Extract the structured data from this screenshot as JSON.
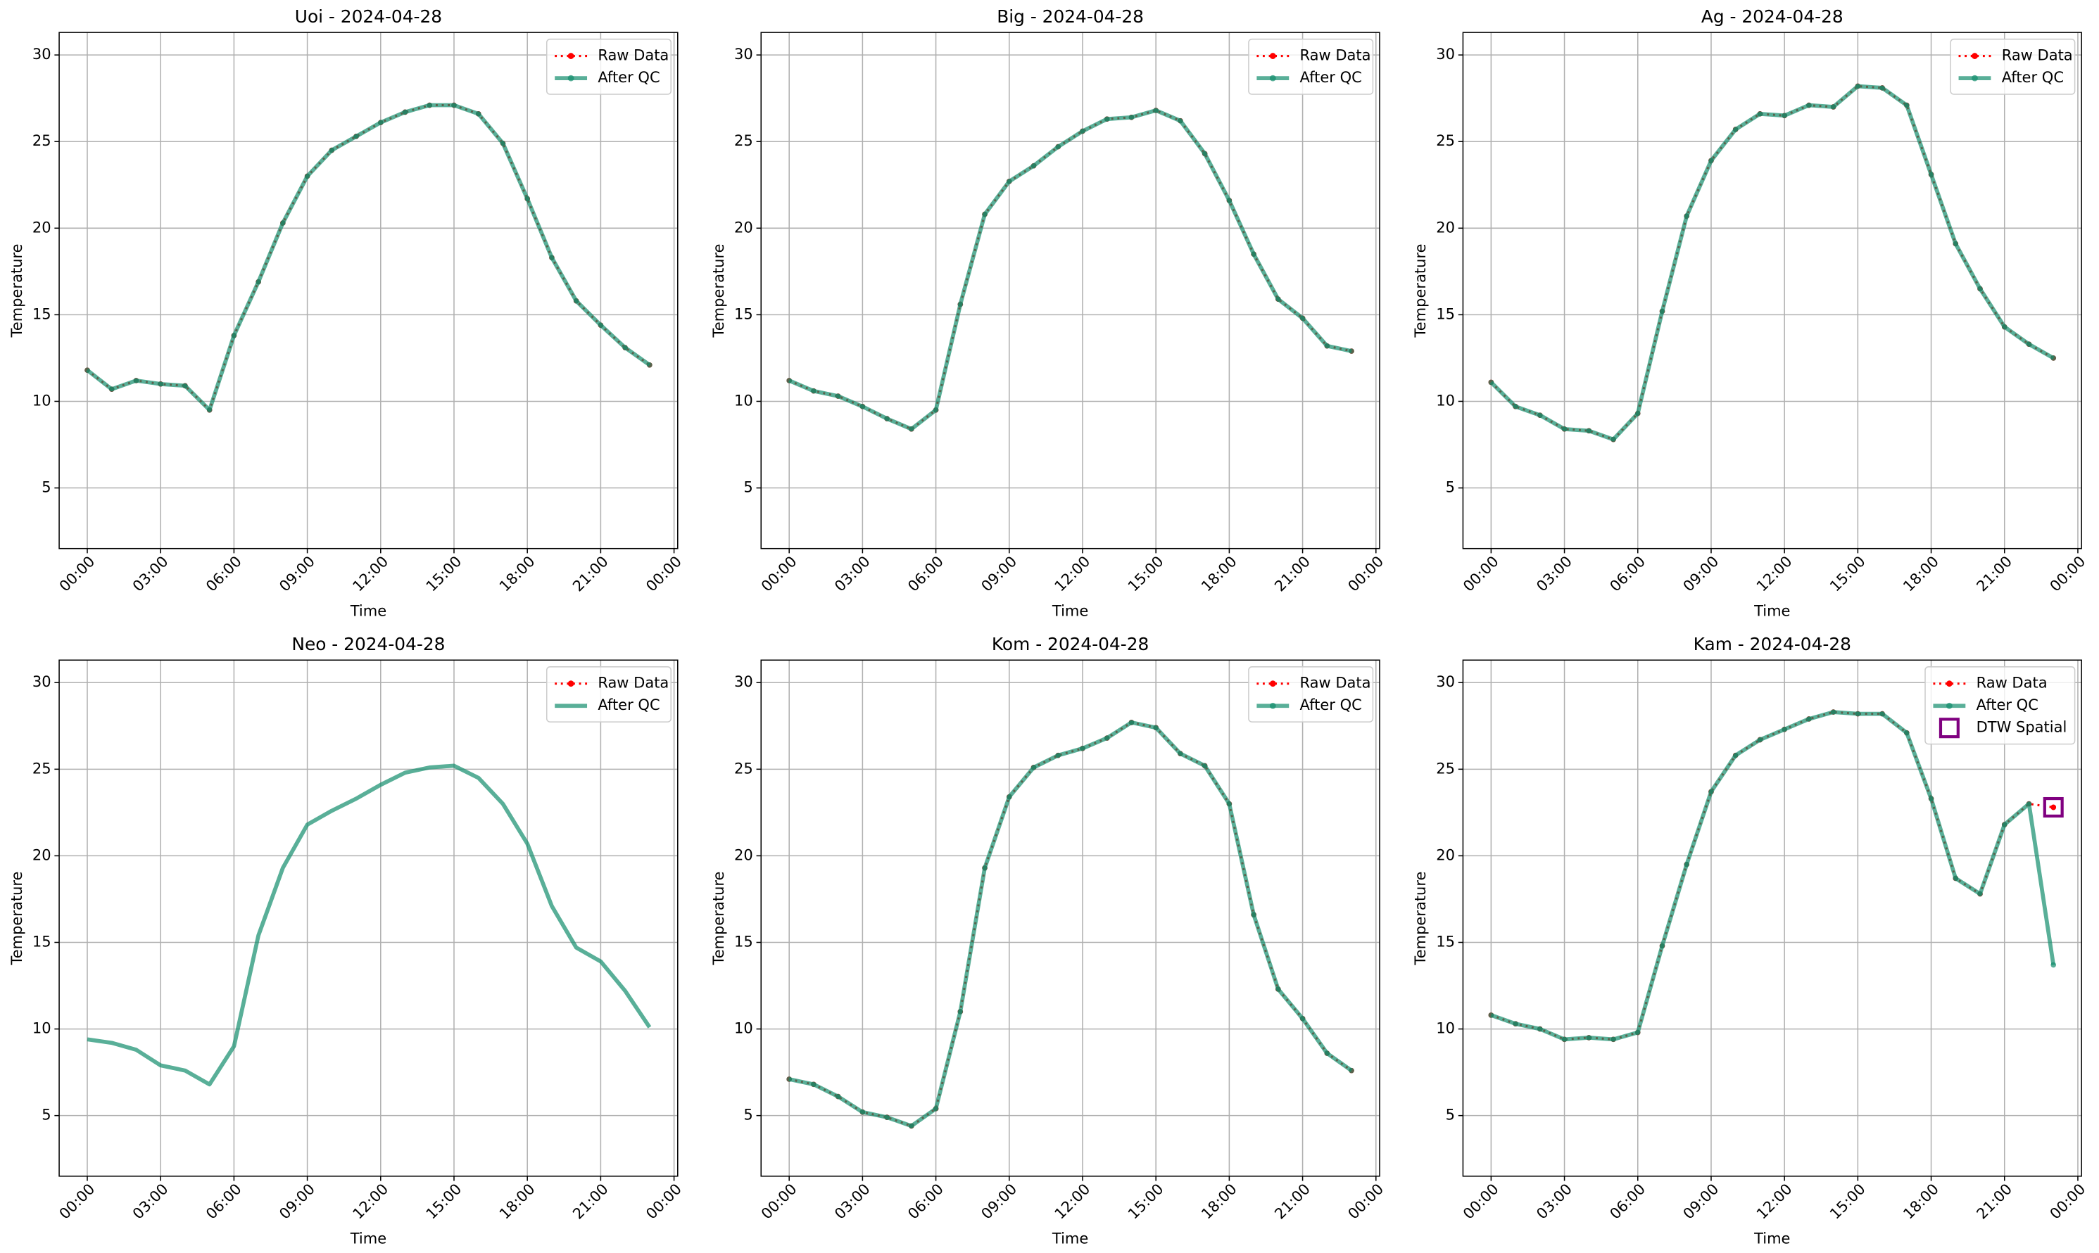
{
  "chart_data": [
    {
      "type": "line",
      "title": "Uoi - 2024-04-28",
      "xlabel": "Time",
      "ylabel": "Temperature",
      "x": [
        0,
        1,
        2,
        3,
        4,
        5,
        6,
        7,
        8,
        9,
        10,
        11,
        12,
        13,
        14,
        15,
        16,
        17,
        18,
        19,
        20,
        21,
        22,
        23
      ],
      "xlim": [
        -1.15,
        24.15
      ],
      "xticks": [
        {
          "value": 0,
          "label": "00:00"
        },
        {
          "value": 3,
          "label": "03:00"
        },
        {
          "value": 6,
          "label": "06:00"
        },
        {
          "value": 9,
          "label": "09:00"
        },
        {
          "value": 12,
          "label": "12:00"
        },
        {
          "value": 15,
          "label": "15:00"
        },
        {
          "value": 18,
          "label": "18:00"
        },
        {
          "value": 21,
          "label": "21:00"
        },
        {
          "value": 24,
          "label": "00:00"
        }
      ],
      "ylim": [
        1.5,
        31.3
      ],
      "yticks": [
        5,
        10,
        15,
        20,
        25,
        30
      ],
      "grid": true,
      "legend": "upper right",
      "series": [
        {
          "name": "Raw Data",
          "color": "#ff0000",
          "style": "dotted",
          "marker": "circle",
          "values": [
            11.8,
            10.7,
            11.2,
            11.0,
            10.9,
            9.5,
            13.8,
            16.9,
            20.3,
            23.0,
            24.5,
            25.3,
            26.1,
            26.7,
            27.1,
            27.1,
            26.6,
            24.9,
            21.7,
            18.3,
            15.8,
            14.4,
            13.1,
            12.1
          ]
        },
        {
          "name": "After QC",
          "color": "#138d6c",
          "alpha": 0.7,
          "style": "solid",
          "marker": "circle",
          "values": [
            11.8,
            10.7,
            11.2,
            11.0,
            10.9,
            9.5,
            13.8,
            16.9,
            20.3,
            23.0,
            24.5,
            25.3,
            26.1,
            26.7,
            27.1,
            27.1,
            26.6,
            24.9,
            21.7,
            18.3,
            15.8,
            14.4,
            13.1,
            12.1
          ]
        }
      ]
    },
    {
      "type": "line",
      "title": "Big - 2024-04-28",
      "xlabel": "Time",
      "ylabel": "Temperature",
      "x": [
        0,
        1,
        2,
        3,
        4,
        5,
        6,
        7,
        8,
        9,
        10,
        11,
        12,
        13,
        14,
        15,
        16,
        17,
        18,
        19,
        20,
        21,
        22,
        23
      ],
      "xlim": [
        -1.15,
        24.15
      ],
      "xticks": [
        {
          "value": 0,
          "label": "00:00"
        },
        {
          "value": 3,
          "label": "03:00"
        },
        {
          "value": 6,
          "label": "06:00"
        },
        {
          "value": 9,
          "label": "09:00"
        },
        {
          "value": 12,
          "label": "12:00"
        },
        {
          "value": 15,
          "label": "15:00"
        },
        {
          "value": 18,
          "label": "18:00"
        },
        {
          "value": 21,
          "label": "21:00"
        },
        {
          "value": 24,
          "label": "00:00"
        }
      ],
      "ylim": [
        1.5,
        31.3
      ],
      "yticks": [
        5,
        10,
        15,
        20,
        25,
        30
      ],
      "grid": true,
      "legend": "upper right",
      "series": [
        {
          "name": "Raw Data",
          "color": "#ff0000",
          "style": "dotted",
          "marker": "circle",
          "values": [
            11.2,
            10.6,
            10.3,
            9.7,
            9.0,
            8.4,
            9.5,
            15.6,
            20.8,
            22.7,
            23.6,
            24.7,
            25.6,
            26.3,
            26.4,
            26.8,
            26.2,
            24.3,
            21.6,
            18.5,
            15.9,
            14.8,
            13.2,
            12.9
          ]
        },
        {
          "name": "After QC",
          "color": "#138d6c",
          "alpha": 0.7,
          "style": "solid",
          "marker": "circle",
          "values": [
            11.2,
            10.6,
            10.3,
            9.7,
            9.0,
            8.4,
            9.5,
            15.6,
            20.8,
            22.7,
            23.6,
            24.7,
            25.6,
            26.3,
            26.4,
            26.8,
            26.2,
            24.3,
            21.6,
            18.5,
            15.9,
            14.8,
            13.2,
            12.9
          ]
        }
      ]
    },
    {
      "type": "line",
      "title": "Ag - 2024-04-28",
      "xlabel": "Time",
      "ylabel": "Temperature",
      "x": [
        0,
        1,
        2,
        3,
        4,
        5,
        6,
        7,
        8,
        9,
        10,
        11,
        12,
        13,
        14,
        15,
        16,
        17,
        18,
        19,
        20,
        21,
        22,
        23
      ],
      "xlim": [
        -1.15,
        24.15
      ],
      "xticks": [
        {
          "value": 0,
          "label": "00:00"
        },
        {
          "value": 3,
          "label": "03:00"
        },
        {
          "value": 6,
          "label": "06:00"
        },
        {
          "value": 9,
          "label": "09:00"
        },
        {
          "value": 12,
          "label": "12:00"
        },
        {
          "value": 15,
          "label": "15:00"
        },
        {
          "value": 18,
          "label": "18:00"
        },
        {
          "value": 21,
          "label": "21:00"
        },
        {
          "value": 24,
          "label": "00:00"
        }
      ],
      "ylim": [
        1.5,
        31.3
      ],
      "yticks": [
        5,
        10,
        15,
        20,
        25,
        30
      ],
      "grid": true,
      "legend": "upper right",
      "series": [
        {
          "name": "Raw Data",
          "color": "#ff0000",
          "style": "dotted",
          "marker": "circle",
          "values": [
            11.1,
            9.7,
            9.2,
            8.4,
            8.3,
            7.8,
            9.3,
            15.2,
            20.7,
            23.9,
            25.7,
            26.6,
            26.5,
            27.1,
            27.0,
            28.2,
            28.1,
            27.1,
            23.1,
            19.1,
            16.5,
            14.3,
            13.3,
            12.5
          ]
        },
        {
          "name": "After QC",
          "color": "#138d6c",
          "alpha": 0.7,
          "style": "solid",
          "marker": "circle",
          "values": [
            11.1,
            9.7,
            9.2,
            8.4,
            8.3,
            7.8,
            9.3,
            15.2,
            20.7,
            23.9,
            25.7,
            26.6,
            26.5,
            27.1,
            27.0,
            28.2,
            28.1,
            27.1,
            23.1,
            19.1,
            16.5,
            14.3,
            13.3,
            12.5
          ]
        }
      ]
    },
    {
      "type": "line",
      "title": "Neo - 2024-04-28",
      "xlabel": "Time",
      "ylabel": "Temperature",
      "x": [
        0,
        1,
        2,
        3,
        4,
        5,
        6,
        7,
        8,
        9,
        10,
        11,
        12,
        13,
        14,
        15,
        16,
        17,
        18,
        19,
        20,
        21,
        22,
        23
      ],
      "xlim": [
        -1.15,
        24.15
      ],
      "xticks": [
        {
          "value": 0,
          "label": "00:00"
        },
        {
          "value": 3,
          "label": "03:00"
        },
        {
          "value": 6,
          "label": "06:00"
        },
        {
          "value": 9,
          "label": "09:00"
        },
        {
          "value": 12,
          "label": "12:00"
        },
        {
          "value": 15,
          "label": "15:00"
        },
        {
          "value": 18,
          "label": "18:00"
        },
        {
          "value": 21,
          "label": "21:00"
        },
        {
          "value": 24,
          "label": "00:00"
        }
      ],
      "ylim": [
        1.5,
        31.3
      ],
      "yticks": [
        5,
        10,
        15,
        20,
        25,
        30
      ],
      "grid": true,
      "legend": "upper right",
      "series": [
        {
          "name": "Raw Data",
          "color": "#ff0000",
          "style": "dotted",
          "marker": "circle",
          "values": [
            null,
            null,
            null,
            null,
            null,
            null,
            null,
            null,
            null,
            null,
            null,
            null,
            null,
            null,
            null,
            null,
            null,
            null,
            null,
            null,
            null,
            null,
            null,
            null
          ]
        },
        {
          "name": "After QC",
          "color": "#138d6c",
          "alpha": 0.7,
          "style": "solid",
          "marker": "none",
          "values": [
            9.4,
            9.2,
            8.8,
            7.9,
            7.6,
            6.8,
            9.0,
            15.4,
            19.3,
            21.8,
            22.6,
            23.3,
            24.1,
            24.8,
            25.1,
            25.2,
            24.5,
            23.0,
            20.7,
            17.1,
            14.7,
            13.9,
            12.2,
            10.1
          ]
        }
      ]
    },
    {
      "type": "line",
      "title": "Kom - 2024-04-28",
      "xlabel": "Time",
      "ylabel": "Temperature",
      "x": [
        0,
        1,
        2,
        3,
        4,
        5,
        6,
        7,
        8,
        9,
        10,
        11,
        12,
        13,
        14,
        15,
        16,
        17,
        18,
        19,
        20,
        21,
        22,
        23
      ],
      "xlim": [
        -1.15,
        24.15
      ],
      "xticks": [
        {
          "value": 0,
          "label": "00:00"
        },
        {
          "value": 3,
          "label": "03:00"
        },
        {
          "value": 6,
          "label": "06:00"
        },
        {
          "value": 9,
          "label": "09:00"
        },
        {
          "value": 12,
          "label": "12:00"
        },
        {
          "value": 15,
          "label": "15:00"
        },
        {
          "value": 18,
          "label": "18:00"
        },
        {
          "value": 21,
          "label": "21:00"
        },
        {
          "value": 24,
          "label": "00:00"
        }
      ],
      "ylim": [
        1.5,
        31.3
      ],
      "yticks": [
        5,
        10,
        15,
        20,
        25,
        30
      ],
      "grid": true,
      "legend": "upper right",
      "series": [
        {
          "name": "Raw Data",
          "color": "#ff0000",
          "style": "dotted",
          "marker": "circle",
          "values": [
            7.1,
            6.8,
            6.1,
            5.2,
            4.9,
            4.4,
            5.4,
            11.0,
            19.3,
            23.4,
            25.1,
            25.8,
            26.2,
            26.8,
            27.7,
            27.4,
            25.9,
            25.2,
            23.0,
            16.6,
            12.3,
            10.6,
            8.6,
            7.6
          ]
        },
        {
          "name": "After QC",
          "color": "#138d6c",
          "alpha": 0.7,
          "style": "solid",
          "marker": "circle",
          "values": [
            7.1,
            6.8,
            6.1,
            5.2,
            4.9,
            4.4,
            5.4,
            11.0,
            19.3,
            23.4,
            25.1,
            25.8,
            26.2,
            26.8,
            27.7,
            27.4,
            25.9,
            25.2,
            23.0,
            16.6,
            12.3,
            10.6,
            8.6,
            7.6
          ]
        }
      ]
    },
    {
      "type": "line",
      "title": "Kam - 2024-04-28",
      "xlabel": "Time",
      "ylabel": "Temperature",
      "x": [
        0,
        1,
        2,
        3,
        4,
        5,
        6,
        7,
        8,
        9,
        10,
        11,
        12,
        13,
        14,
        15,
        16,
        17,
        18,
        19,
        20,
        21,
        22,
        23
      ],
      "xlim": [
        -1.15,
        24.15
      ],
      "xticks": [
        {
          "value": 0,
          "label": "00:00"
        },
        {
          "value": 3,
          "label": "03:00"
        },
        {
          "value": 6,
          "label": "06:00"
        },
        {
          "value": 9,
          "label": "09:00"
        },
        {
          "value": 12,
          "label": "12:00"
        },
        {
          "value": 15,
          "label": "15:00"
        },
        {
          "value": 18,
          "label": "18:00"
        },
        {
          "value": 21,
          "label": "21:00"
        },
        {
          "value": 24,
          "label": "00:00"
        }
      ],
      "ylim": [
        1.5,
        31.3
      ],
      "yticks": [
        5,
        10,
        15,
        20,
        25,
        30
      ],
      "grid": true,
      "legend": "upper right",
      "series": [
        {
          "name": "Raw Data",
          "color": "#ff0000",
          "style": "dotted",
          "marker": "circle",
          "values": [
            10.8,
            10.3,
            10.0,
            9.4,
            9.5,
            9.4,
            9.8,
            14.8,
            19.5,
            23.7,
            25.8,
            26.7,
            27.3,
            27.9,
            28.3,
            28.2,
            28.2,
            27.1,
            23.3,
            18.7,
            17.8,
            21.8,
            23.0,
            22.8
          ]
        },
        {
          "name": "After QC",
          "color": "#138d6c",
          "alpha": 0.7,
          "style": "solid",
          "marker": "circle",
          "values": [
            10.8,
            10.3,
            10.0,
            9.4,
            9.5,
            9.4,
            9.8,
            14.8,
            19.5,
            23.7,
            25.8,
            26.7,
            27.3,
            27.9,
            28.3,
            28.2,
            28.2,
            27.1,
            23.3,
            18.7,
            17.8,
            21.8,
            23.0,
            13.7
          ]
        },
        {
          "name": "DTW Spatial",
          "color": "#800080",
          "style": "none",
          "marker": "square",
          "x": [
            23
          ],
          "values": [
            22.8
          ]
        }
      ]
    }
  ]
}
